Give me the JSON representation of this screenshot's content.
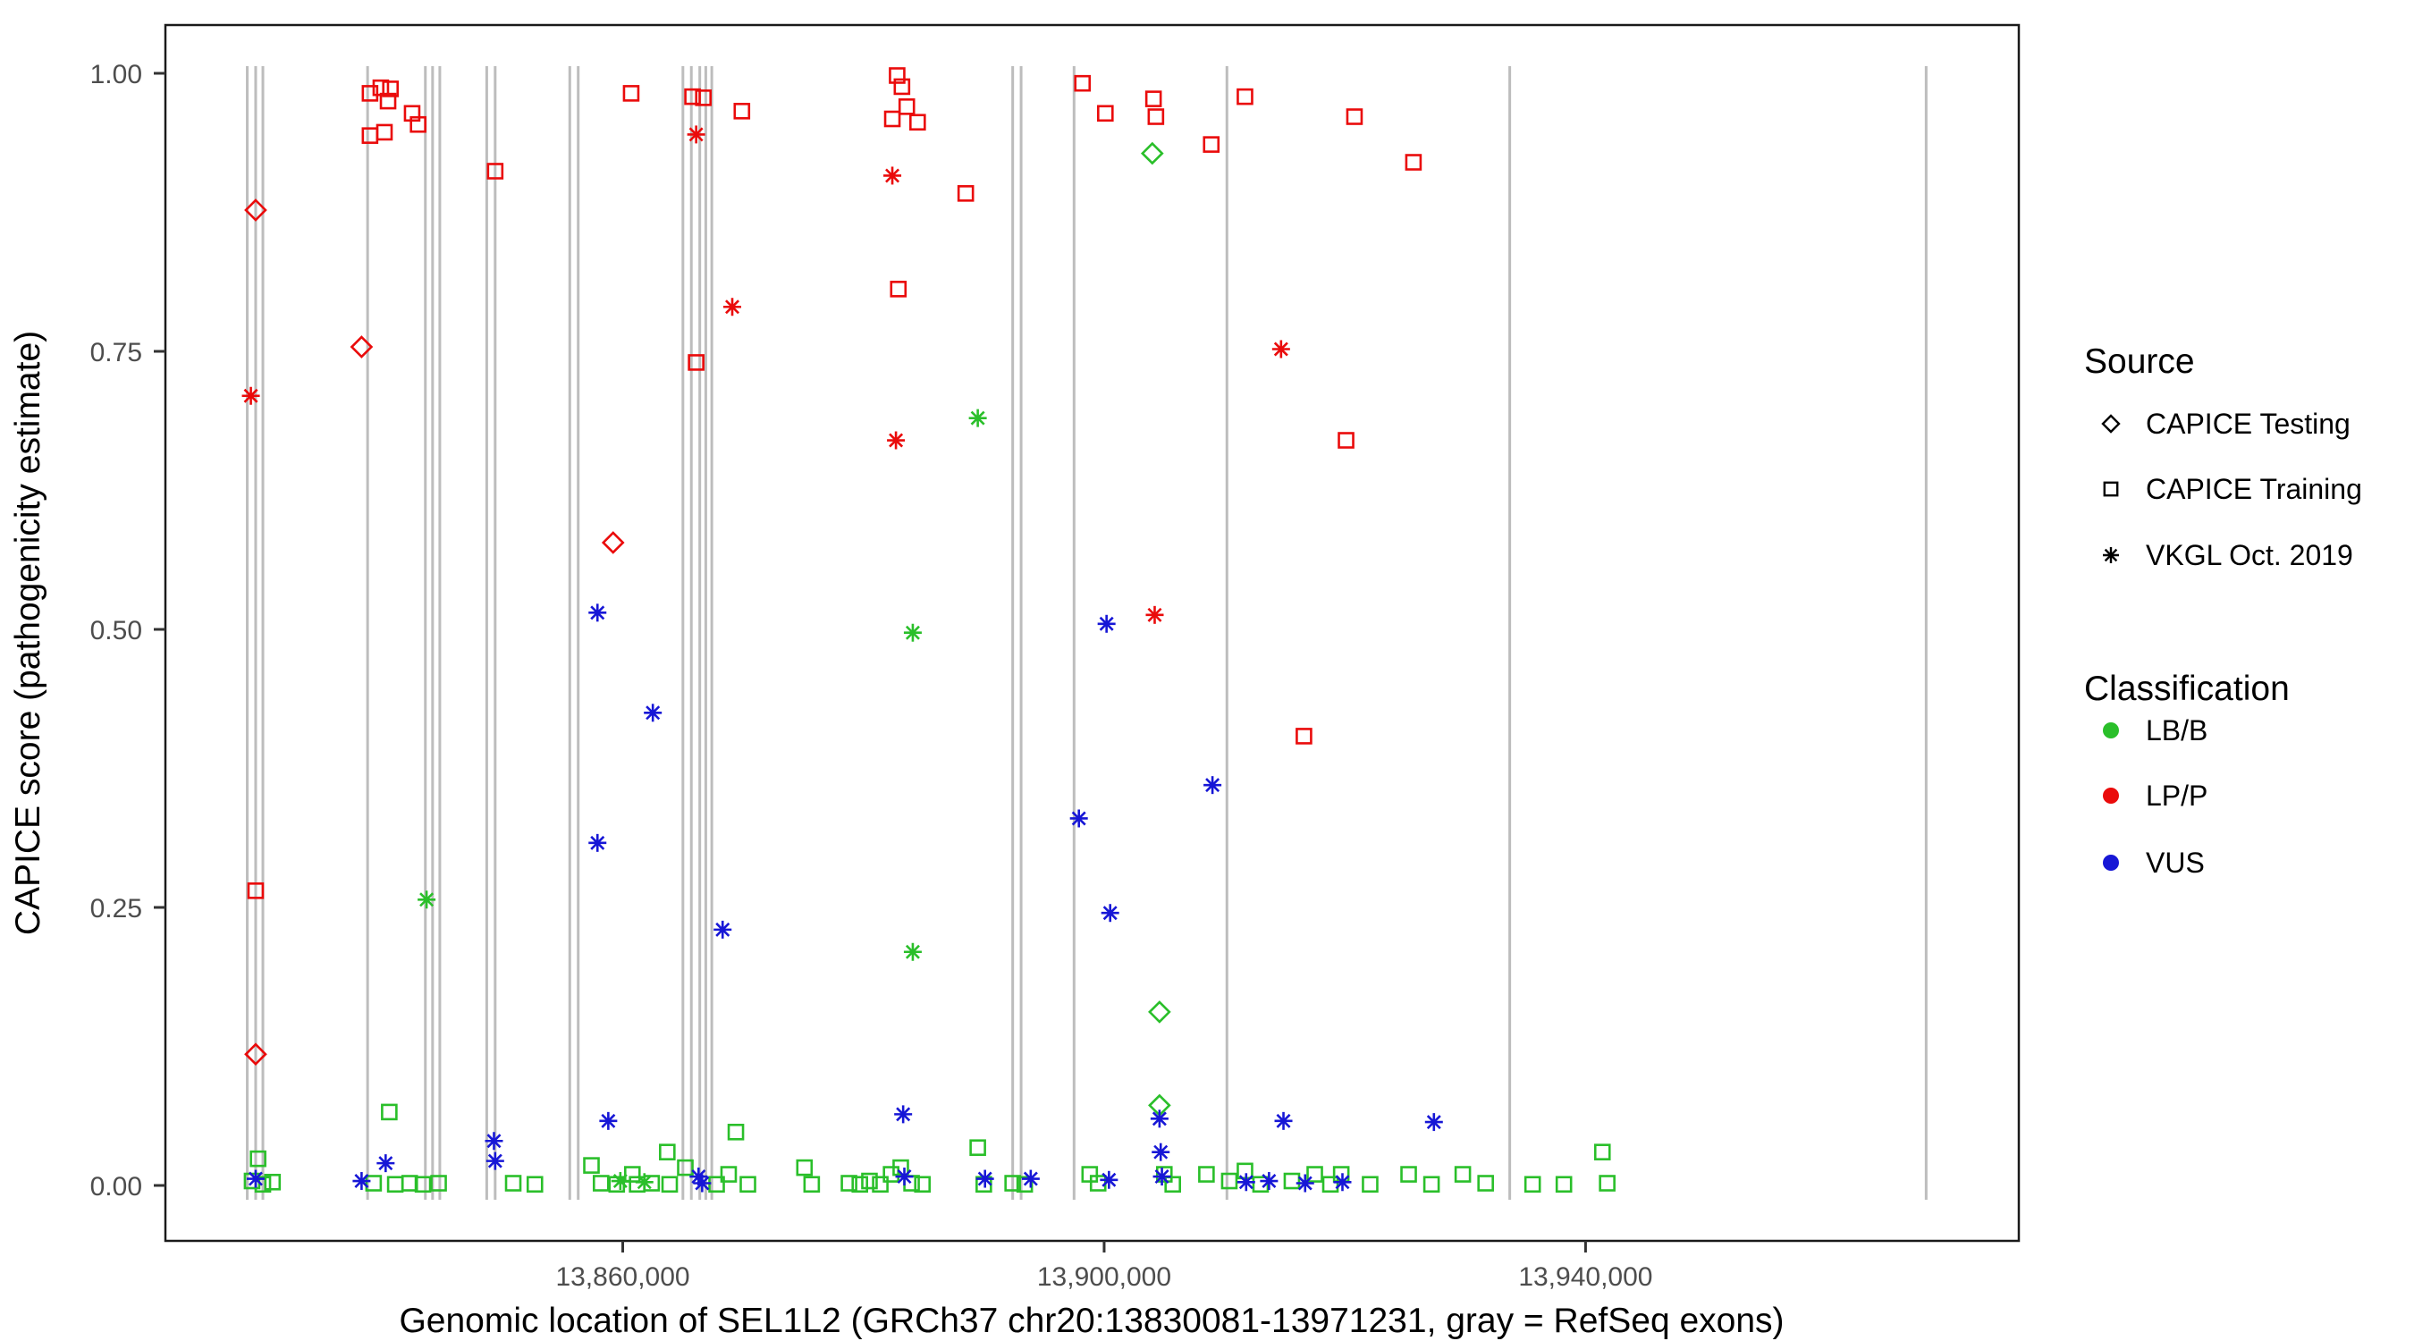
{
  "chart_data": {
    "type": "scatter",
    "title": "",
    "xlabel": "Genomic location of SEL1L2 (GRCh37 chr20:13830081-13971231, gray = RefSeq exons)",
    "ylabel": "CAPICE score (pathogenicity estimate)",
    "xlim": [
      13822000,
      13976000
    ],
    "ylim": [
      0,
      1
    ],
    "grid": "off",
    "x_ticks": [
      {
        "value": 13860000,
        "label": "13,860,000"
      },
      {
        "value": 13900000,
        "label": "13,900,000"
      },
      {
        "value": 13940000,
        "label": "13,940,000"
      }
    ],
    "y_ticks": [
      {
        "value": 0,
        "label": "0.00"
      },
      {
        "value": 0.25,
        "label": "0.25"
      },
      {
        "value": 0.5,
        "label": "0.50"
      },
      {
        "value": 0.75,
        "label": "0.75"
      },
      {
        "value": 1,
        "label": "1.00"
      }
    ],
    "colors": {
      "LB/B": "#2abf2a",
      "LP/P": "#ea0b0b",
      "VUS": "#1717d6",
      "exon": "#bdbdbd"
    },
    "exons": [
      13828800,
      13829500,
      13830100,
      13838800,
      13843600,
      13844200,
      13844800,
      13848700,
      13849400,
      13855600,
      13856300,
      13865000,
      13865700,
      13866400,
      13866900,
      13867400,
      13892400,
      13893100,
      13897500,
      13910200,
      13933700,
      13968300
    ],
    "legend": {
      "source": {
        "title": "Source",
        "items": [
          {
            "label": "CAPICE Testing",
            "shape": "diamond"
          },
          {
            "label": "CAPICE Training",
            "shape": "square"
          },
          {
            "label": "VKGL Oct. 2019",
            "shape": "asterisk"
          }
        ]
      },
      "classification": {
        "title": "Classification",
        "items": [
          {
            "label": "LB/B",
            "color": "#2abf2a"
          },
          {
            "label": "LP/P",
            "color": "#ea0b0b"
          },
          {
            "label": "VUS",
            "color": "#1717d6"
          }
        ]
      }
    },
    "series": [
      {
        "name": "CAPICE Testing / LP-P",
        "source": "CAPICE Testing",
        "classification": "LP/P",
        "shape": "diamond",
        "color": "#ea0b0b",
        "points": [
          [
            13829500,
            0.877
          ],
          [
            13838300,
            0.754
          ],
          [
            13859200,
            0.578
          ],
          [
            13829500,
            0.118
          ]
        ]
      },
      {
        "name": "CAPICE Testing / LB-B",
        "source": "CAPICE Testing",
        "classification": "LB/B",
        "shape": "diamond",
        "color": "#2abf2a",
        "points": [
          [
            13904000,
            0.928
          ],
          [
            13904600,
            0.156
          ],
          [
            13904600,
            0.072
          ]
        ]
      },
      {
        "name": "CAPICE Training / LP-P",
        "source": "CAPICE Training",
        "classification": "LP/P",
        "shape": "square",
        "color": "#ea0b0b",
        "points": [
          [
            13829500,
            0.265
          ],
          [
            13839000,
            0.982
          ],
          [
            13839900,
            0.987
          ],
          [
            13840700,
            0.986
          ],
          [
            13840500,
            0.975
          ],
          [
            13839000,
            0.944
          ],
          [
            13840200,
            0.947
          ],
          [
            13842500,
            0.964
          ],
          [
            13843000,
            0.954
          ],
          [
            13849400,
            0.912
          ],
          [
            13860700,
            0.982
          ],
          [
            13865800,
            0.979
          ],
          [
            13866700,
            0.978
          ],
          [
            13866100,
            0.74
          ],
          [
            13869900,
            0.966
          ],
          [
            13882800,
            0.998
          ],
          [
            13883200,
            0.988
          ],
          [
            13882400,
            0.959
          ],
          [
            13883600,
            0.97
          ],
          [
            13884500,
            0.956
          ],
          [
            13882900,
            0.806
          ],
          [
            13888500,
            0.892
          ],
          [
            13898200,
            0.991
          ],
          [
            13900100,
            0.964
          ],
          [
            13904100,
            0.977
          ],
          [
            13904300,
            0.961
          ],
          [
            13908900,
            0.936
          ],
          [
            13911700,
            0.979
          ],
          [
            13916600,
            0.404
          ],
          [
            13920100,
            0.67
          ],
          [
            13920800,
            0.961
          ],
          [
            13925700,
            0.92
          ]
        ]
      },
      {
        "name": "CAPICE Training / LB-B",
        "source": "CAPICE Training",
        "classification": "LB/B",
        "shape": "square",
        "color": "#2abf2a",
        "points": [
          [
            13829700,
            0.024
          ],
          [
            13829200,
            0.004
          ],
          [
            13830100,
            0.001
          ],
          [
            13830900,
            0.003
          ],
          [
            13840600,
            0.066
          ],
          [
            13839300,
            0.002
          ],
          [
            13841100,
            0.001
          ],
          [
            13842300,
            0.002
          ],
          [
            13843400,
            0.001
          ],
          [
            13844700,
            0.002
          ],
          [
            13850900,
            0.002
          ],
          [
            13852700,
            0.001
          ],
          [
            13857400,
            0.018
          ],
          [
            13858200,
            0.002
          ],
          [
            13859500,
            0.001
          ],
          [
            13860800,
            0.01
          ],
          [
            13861200,
            0.001
          ],
          [
            13862400,
            0.002
          ],
          [
            13863700,
            0.03
          ],
          [
            13863900,
            0.001
          ],
          [
            13865200,
            0.016
          ],
          [
            13867800,
            0.001
          ],
          [
            13869400,
            0.048
          ],
          [
            13868800,
            0.01
          ],
          [
            13870400,
            0.001
          ],
          [
            13875100,
            0.016
          ],
          [
            13875700,
            0.001
          ],
          [
            13878800,
            0.002
          ],
          [
            13879700,
            0.001
          ],
          [
            13880500,
            0.004
          ],
          [
            13881400,
            0.001
          ],
          [
            13882300,
            0.01
          ],
          [
            13883100,
            0.016
          ],
          [
            13884000,
            0.002
          ],
          [
            13884900,
            0.001
          ],
          [
            13889500,
            0.034
          ],
          [
            13890000,
            0.001
          ],
          [
            13892400,
            0.002
          ],
          [
            13893400,
            0.001
          ],
          [
            13898800,
            0.01
          ],
          [
            13899500,
            0.002
          ],
          [
            13905000,
            0.01
          ],
          [
            13905700,
            0.001
          ],
          [
            13908500,
            0.01
          ],
          [
            13910400,
            0.004
          ],
          [
            13911700,
            0.013
          ],
          [
            13913000,
            0.001
          ],
          [
            13915600,
            0.004
          ],
          [
            13917500,
            0.01
          ],
          [
            13918800,
            0.001
          ],
          [
            13919700,
            0.01
          ],
          [
            13922100,
            0.001
          ],
          [
            13925300,
            0.01
          ],
          [
            13927200,
            0.001
          ],
          [
            13929800,
            0.01
          ],
          [
            13931700,
            0.002
          ],
          [
            13935600,
            0.001
          ],
          [
            13938200,
            0.001
          ],
          [
            13941400,
            0.03
          ],
          [
            13941800,
            0.002
          ]
        ]
      },
      {
        "name": "VKGL Oct. 2019 / LP-P",
        "source": "VKGL Oct. 2019",
        "classification": "LP/P",
        "shape": "asterisk",
        "color": "#ea0b0b",
        "points": [
          [
            13829100,
            0.71
          ],
          [
            13866100,
            0.945
          ],
          [
            13869100,
            0.79
          ],
          [
            13882400,
            0.908
          ],
          [
            13882700,
            0.67
          ],
          [
            13904200,
            0.513
          ],
          [
            13914700,
            0.752
          ]
        ]
      },
      {
        "name": "VKGL Oct. 2019 / LB-B",
        "source": "VKGL Oct. 2019",
        "classification": "LB/B",
        "shape": "asterisk",
        "color": "#2abf2a",
        "points": [
          [
            13843700,
            0.257
          ],
          [
            13889500,
            0.69
          ],
          [
            13884100,
            0.497
          ],
          [
            13884100,
            0.21
          ],
          [
            13859800,
            0.004
          ],
          [
            13861800,
            0.003
          ]
        ]
      },
      {
        "name": "VKGL Oct. 2019 / VUS",
        "source": "VKGL Oct. 2019",
        "classification": "VUS",
        "shape": "asterisk",
        "color": "#1717d6",
        "points": [
          [
            13857900,
            0.515
          ],
          [
            13862500,
            0.425
          ],
          [
            13857900,
            0.308
          ],
          [
            13868300,
            0.23
          ],
          [
            13900200,
            0.505
          ],
          [
            13897900,
            0.33
          ],
          [
            13900500,
            0.245
          ],
          [
            13909000,
            0.36
          ],
          [
            13883300,
            0.064
          ],
          [
            13858800,
            0.058
          ],
          [
            13914900,
            0.058
          ],
          [
            13927400,
            0.057
          ],
          [
            13849300,
            0.04
          ],
          [
            13849400,
            0.022
          ],
          [
            13840300,
            0.02
          ],
          [
            13904600,
            0.06
          ],
          [
            13904700,
            0.03
          ],
          [
            13904800,
            0.008
          ],
          [
            13829500,
            0.006
          ],
          [
            13838300,
            0.004
          ],
          [
            13866300,
            0.008
          ],
          [
            13866600,
            0.002
          ],
          [
            13883400,
            0.008
          ],
          [
            13890100,
            0.006
          ],
          [
            13893900,
            0.006
          ],
          [
            13900400,
            0.005
          ],
          [
            13911800,
            0.003
          ],
          [
            13913700,
            0.004
          ],
          [
            13916700,
            0.002
          ],
          [
            13919800,
            0.003
          ]
        ]
      }
    ]
  }
}
